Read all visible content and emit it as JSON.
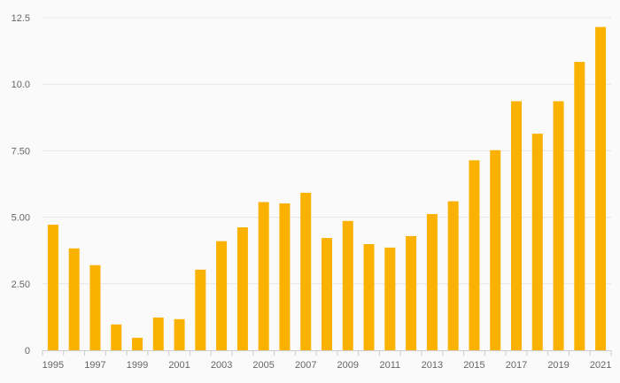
{
  "chart_data": {
    "type": "bar",
    "title": "",
    "xlabel": "",
    "ylabel": "",
    "categories": [
      "1995",
      "1996",
      "1997",
      "1998",
      "1999",
      "2000",
      "2001",
      "2002",
      "2003",
      "2004",
      "2005",
      "2006",
      "2007",
      "2008",
      "2009",
      "2010",
      "2011",
      "2012",
      "2013",
      "2014",
      "2015",
      "2016",
      "2017",
      "2018",
      "2019",
      "2020",
      "2021"
    ],
    "x_tick_labels": [
      "1995",
      "1997",
      "1999",
      "2001",
      "2003",
      "2005",
      "2007",
      "2009",
      "2011",
      "2013",
      "2015",
      "2017",
      "2019",
      "2021"
    ],
    "values": [
      4.72,
      3.83,
      3.2,
      0.97,
      0.47,
      1.23,
      1.17,
      3.03,
      4.1,
      4.62,
      5.57,
      5.52,
      5.92,
      4.22,
      4.86,
      3.99,
      3.86,
      4.29,
      5.12,
      5.6,
      7.14,
      7.52,
      9.36,
      8.14,
      9.36,
      10.84,
      12.15
    ],
    "y_ticks": [
      {
        "value": 0,
        "label": "0"
      },
      {
        "value": 2.5,
        "label": "2.50"
      },
      {
        "value": 5,
        "label": "5.00"
      },
      {
        "value": 7.5,
        "label": "7.50"
      },
      {
        "value": 10,
        "label": "10.0"
      },
      {
        "value": 12.5,
        "label": "12.5"
      }
    ],
    "ylim": [
      0,
      12.5
    ],
    "grid": true,
    "legend": "none",
    "colors": {
      "bar": "#fbb100",
      "grid": "#e6e6e6",
      "axis": "#cccccc",
      "text": "#666666"
    }
  }
}
